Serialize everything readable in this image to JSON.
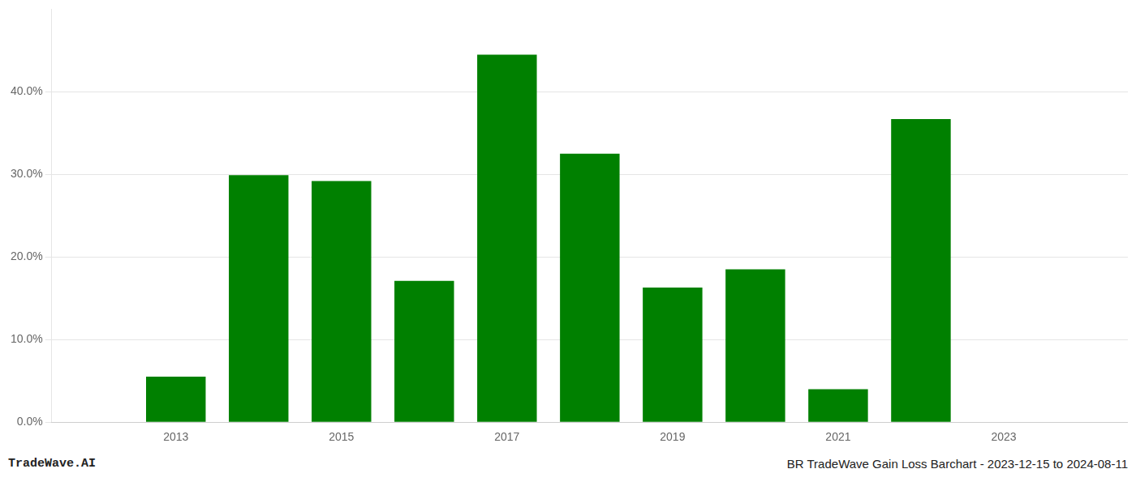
{
  "chart_data": {
    "type": "bar",
    "x": [
      2013,
      2014,
      2015,
      2016,
      2017,
      2018,
      2019,
      2020,
      2021,
      2022
    ],
    "values": [
      0.055,
      0.299,
      0.292,
      0.171,
      0.445,
      0.325,
      0.163,
      0.185,
      0.04,
      0.367
    ],
    "color": "#008000",
    "xlim": [
      2011.5,
      2024.5
    ],
    "xticks": [
      2013,
      2015,
      2017,
      2019,
      2021,
      2023
    ],
    "ylim": [
      0,
      0.5
    ],
    "yticks": [
      {
        "value": 0.0,
        "label": "0.0%"
      },
      {
        "value": 0.1,
        "label": "10.0%"
      },
      {
        "value": 0.2,
        "label": "20.0%"
      },
      {
        "value": 0.3,
        "label": "30.0%"
      },
      {
        "value": 0.4,
        "label": "40.0%"
      }
    ],
    "grid": "y",
    "annotations": [
      "TradeWave.AI",
      "BR TradeWave Gain Loss Barchart - 2023-12-15 to 2024-08-11"
    ]
  }
}
